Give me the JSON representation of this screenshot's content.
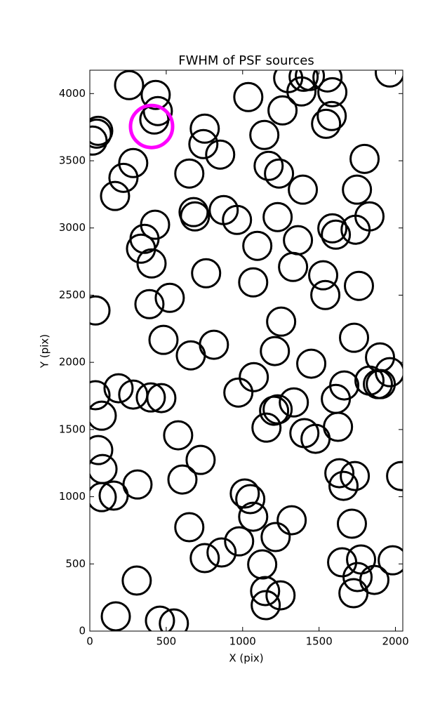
{
  "chart_data": {
    "type": "scatter",
    "title": "FWHM of PSF sources",
    "x_label": "X (pix)",
    "y_label": "Y (pix)",
    "xlim": [
      0,
      2048
    ],
    "ylim": [
      0,
      4174
    ],
    "xticks": [
      0,
      500,
      1000,
      1500,
      2000
    ],
    "yticks": [
      0,
      500,
      1000,
      1500,
      2000,
      2500,
      3000,
      3500,
      4000
    ],
    "series": [
      {
        "color": "#000000",
        "x": [
          257,
          459,
          550,
          55,
          46,
          18,
          431,
          445,
          422,
          284,
          220,
          165,
          651,
          752,
          743,
          853,
          1037,
          1142,
          1170,
          1238,
          1298,
          1399,
          1440,
          1555,
          1385,
          1587,
          1583,
          1546,
          1261,
          1963,
          1798,
          1394,
          1748,
          679,
          688,
          876,
          963,
          1229,
          427,
          358,
          335,
          404,
          1096,
          1362,
          1587,
          1610,
          1830,
          1739,
          761,
          1069,
          1330,
          1527,
          1541,
          1761,
          523,
          390,
          37,
          1252,
          482,
          661,
          812,
          1211,
          1449,
          1729,
          1899,
          1963,
          1830,
          1885,
          1904,
          1665,
          1610,
          1073,
          972,
          1335,
          1206,
          1229,
          1156,
          1404,
          1477,
          1624,
          37,
          78,
          188,
          284,
          399,
          468,
          578,
          725,
          606,
          312,
          55,
          83,
          78,
          156,
          1014,
          1050,
          1069,
          1321,
          1216,
          977,
          651,
          752,
          862,
          1128,
          1147,
          1151,
          1248,
          307,
          170,
          1633,
          1734,
          1660,
          1715,
          1651,
          1775,
          1752,
          1862,
          1725,
          1982,
          2037
        ],
        "y": [
          4063,
          78,
          57,
          3723,
          3702,
          3650,
          3990,
          3870,
          3807,
          3483,
          3373,
          3238,
          3405,
          3739,
          3624,
          3546,
          3974,
          3692,
          3462,
          3405,
          4115,
          4125,
          4131,
          4120,
          4016,
          4010,
          3833,
          3775,
          3875,
          4157,
          3514,
          3285,
          3285,
          3118,
          3086,
          3133,
          3060,
          3081,
          3024,
          2919,
          2846,
          2736,
          2867,
          2909,
          2997,
          2950,
          3086,
          2987,
          2663,
          2595,
          2710,
          2648,
          2501,
          2569,
          2480,
          2433,
          2386,
          2303,
          2167,
          2052,
          2131,
          2084,
          1990,
          2183,
          2037,
          1927,
          1864,
          1838,
          1838,
          1828,
          1728,
          1890,
          1775,
          1702,
          1640,
          1650,
          1514,
          1473,
          1431,
          1520,
          1755,
          1603,
          1807,
          1760,
          1739,
          1734,
          1457,
          1274,
          1128,
          1091,
          1347,
          1206,
          997,
          1008,
          1024,
          982,
          851,
          825,
          700,
          668,
          773,
          543,
          585,
          496,
          298,
          193,
          266,
          376,
          110,
          1175,
          1154,
          1081,
          799,
          512,
          533,
          402,
          381,
          282,
          527,
          1154
        ]
      },
      {
        "color": "#ff00ff",
        "x": [
          404
        ],
        "y": [
          3755
        ]
      }
    ]
  }
}
